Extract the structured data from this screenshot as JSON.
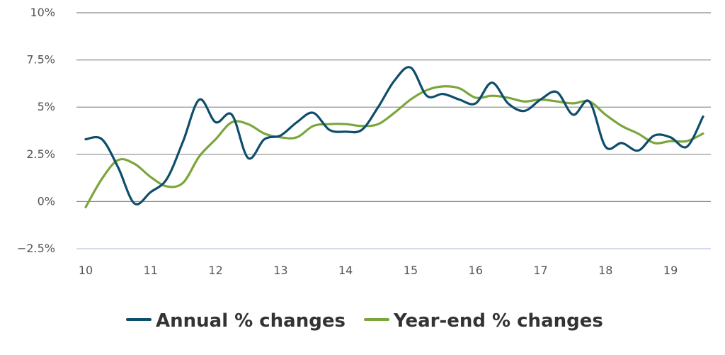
{
  "chart_data": {
    "type": "line",
    "title": "",
    "xlabel": "",
    "ylabel": "",
    "xlim": [
      10,
      19.5
    ],
    "ylim": [
      -2.5,
      10
    ],
    "x_ticks": [
      {
        "value": 10,
        "label": "10"
      },
      {
        "value": 11,
        "label": "11"
      },
      {
        "value": 12,
        "label": "12"
      },
      {
        "value": 13,
        "label": "13"
      },
      {
        "value": 14,
        "label": "14"
      },
      {
        "value": 15,
        "label": "15"
      },
      {
        "value": 16,
        "label": "16"
      },
      {
        "value": 17,
        "label": "17"
      },
      {
        "value": 18,
        "label": "18"
      },
      {
        "value": 19,
        "label": "19"
      }
    ],
    "y_ticks": [
      {
        "value": 10,
        "label": "10%"
      },
      {
        "value": 7.5,
        "label": "7.5%"
      },
      {
        "value": 5,
        "label": "5%"
      },
      {
        "value": 2.5,
        "label": "2.5%"
      },
      {
        "value": 0,
        "label": "0%"
      },
      {
        "value": -2.5,
        "label": "−2.5%"
      }
    ],
    "grid": true,
    "legend_position": "bottom",
    "series": [
      {
        "name": "Annual % changes",
        "color": "#0e4d6b",
        "x": [
          10.0,
          10.25,
          10.5,
          10.75,
          11.0,
          11.25,
          11.5,
          11.75,
          12.0,
          12.25,
          12.5,
          12.75,
          13.0,
          13.25,
          13.5,
          13.75,
          14.0,
          14.25,
          14.5,
          14.75,
          15.0,
          15.25,
          15.5,
          15.75,
          16.0,
          16.25,
          16.5,
          16.75,
          17.0,
          17.25,
          17.5,
          17.75,
          18.0,
          18.25,
          18.5,
          18.75,
          19.0,
          19.25,
          19.5
        ],
        "y": [
          3.3,
          3.3,
          1.8,
          -0.1,
          0.5,
          1.2,
          3.2,
          5.4,
          4.2,
          4.6,
          2.3,
          3.3,
          3.5,
          4.2,
          4.7,
          3.8,
          3.7,
          3.8,
          5.0,
          6.4,
          7.1,
          5.6,
          5.7,
          5.4,
          5.2,
          6.3,
          5.2,
          4.8,
          5.4,
          5.8,
          4.6,
          5.3,
          2.9,
          3.1,
          2.7,
          3.5,
          3.4,
          2.9,
          4.5
        ]
      },
      {
        "name": "Year-end % changes",
        "color": "#7aa63c",
        "x": [
          10.0,
          10.25,
          10.5,
          10.75,
          11.0,
          11.25,
          11.5,
          11.75,
          12.0,
          12.25,
          12.5,
          12.75,
          13.0,
          13.25,
          13.5,
          13.75,
          14.0,
          14.25,
          14.5,
          14.75,
          15.0,
          15.25,
          15.5,
          15.75,
          16.0,
          16.25,
          16.5,
          16.75,
          17.0,
          17.25,
          17.5,
          17.75,
          18.0,
          18.25,
          18.5,
          18.75,
          19.0,
          19.25,
          19.5
        ],
        "y": [
          -0.3,
          1.2,
          2.2,
          2.0,
          1.3,
          0.8,
          1.0,
          2.4,
          3.3,
          4.2,
          4.1,
          3.6,
          3.4,
          3.4,
          4.0,
          4.1,
          4.1,
          4.0,
          4.1,
          4.7,
          5.4,
          5.9,
          6.1,
          6.0,
          5.5,
          5.6,
          5.5,
          5.3,
          5.4,
          5.3,
          5.2,
          5.3,
          4.6,
          4.0,
          3.6,
          3.1,
          3.2,
          3.2,
          3.6
        ]
      }
    ]
  }
}
